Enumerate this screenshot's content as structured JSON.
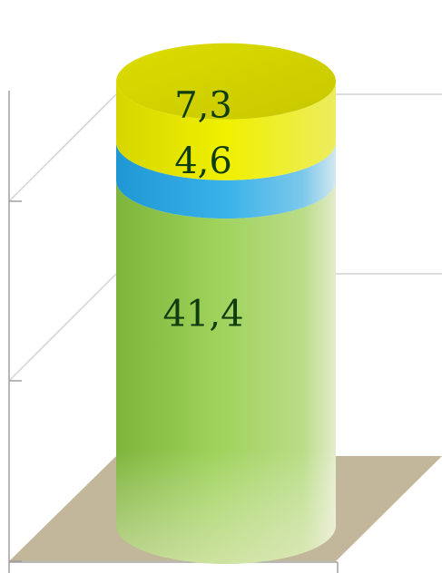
{
  "chart_data": {
    "type": "bar",
    "title": "",
    "xlabel": "",
    "ylabel": "",
    "categories": [
      ""
    ],
    "series": [
      {
        "values": [
          41.4
        ],
        "color": "#8cc63f"
      },
      {
        "values": [
          4.6
        ],
        "color": "#29a8e0"
      },
      {
        "values": [
          7.3
        ],
        "color": "#e6e600"
      }
    ],
    "labels": [
      "41,4",
      "4,6",
      "7,3"
    ],
    "ylim": [
      0,
      53.3
    ],
    "grid": true,
    "legend": "none",
    "floor_color": "#c2b79a"
  }
}
